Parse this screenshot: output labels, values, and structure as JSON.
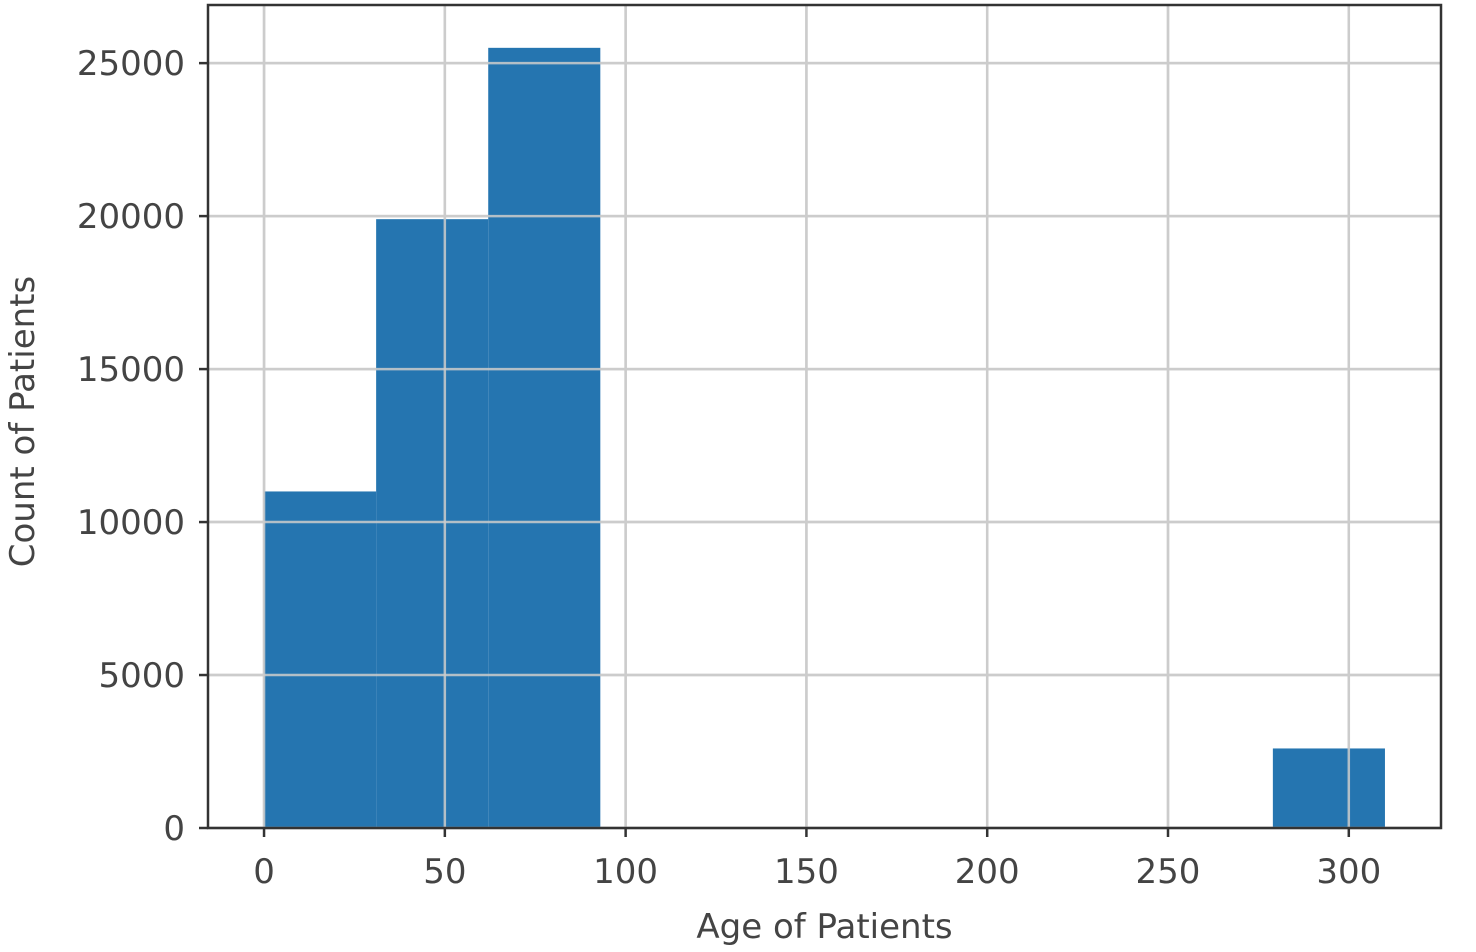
{
  "chart_data": {
    "type": "bar",
    "variant": "histogram",
    "bins": [
      {
        "x0": 0,
        "x1": 31,
        "count": 11000
      },
      {
        "x0": 31,
        "x1": 62,
        "count": 19900
      },
      {
        "x0": 62,
        "x1": 93,
        "count": 25500
      },
      {
        "x0": 93,
        "x1": 124,
        "count": 0
      },
      {
        "x0": 124,
        "x1": 155,
        "count": 0
      },
      {
        "x0": 155,
        "x1": 186,
        "count": 0
      },
      {
        "x0": 186,
        "x1": 217,
        "count": 0
      },
      {
        "x0": 217,
        "x1": 248,
        "count": 0
      },
      {
        "x0": 248,
        "x1": 279,
        "count": 0
      },
      {
        "x0": 279,
        "x1": 310,
        "count": 2600
      }
    ],
    "title": "",
    "xlabel": "Age of Patients",
    "ylabel": "Count of Patients",
    "xlim": [
      -15.5,
      325.5
    ],
    "ylim": [
      0,
      26900
    ],
    "xticks": [
      0,
      50,
      100,
      150,
      200,
      250,
      300
    ],
    "xtick_labels": [
      "0",
      "50",
      "100",
      "150",
      "200",
      "250",
      "300"
    ],
    "yticks": [
      0,
      5000,
      10000,
      15000,
      20000,
      25000
    ],
    "ytick_labels": [
      "0",
      "5000",
      "10000",
      "15000",
      "20000",
      "25000"
    ],
    "grid": true,
    "bar_color": "#2575b0"
  }
}
